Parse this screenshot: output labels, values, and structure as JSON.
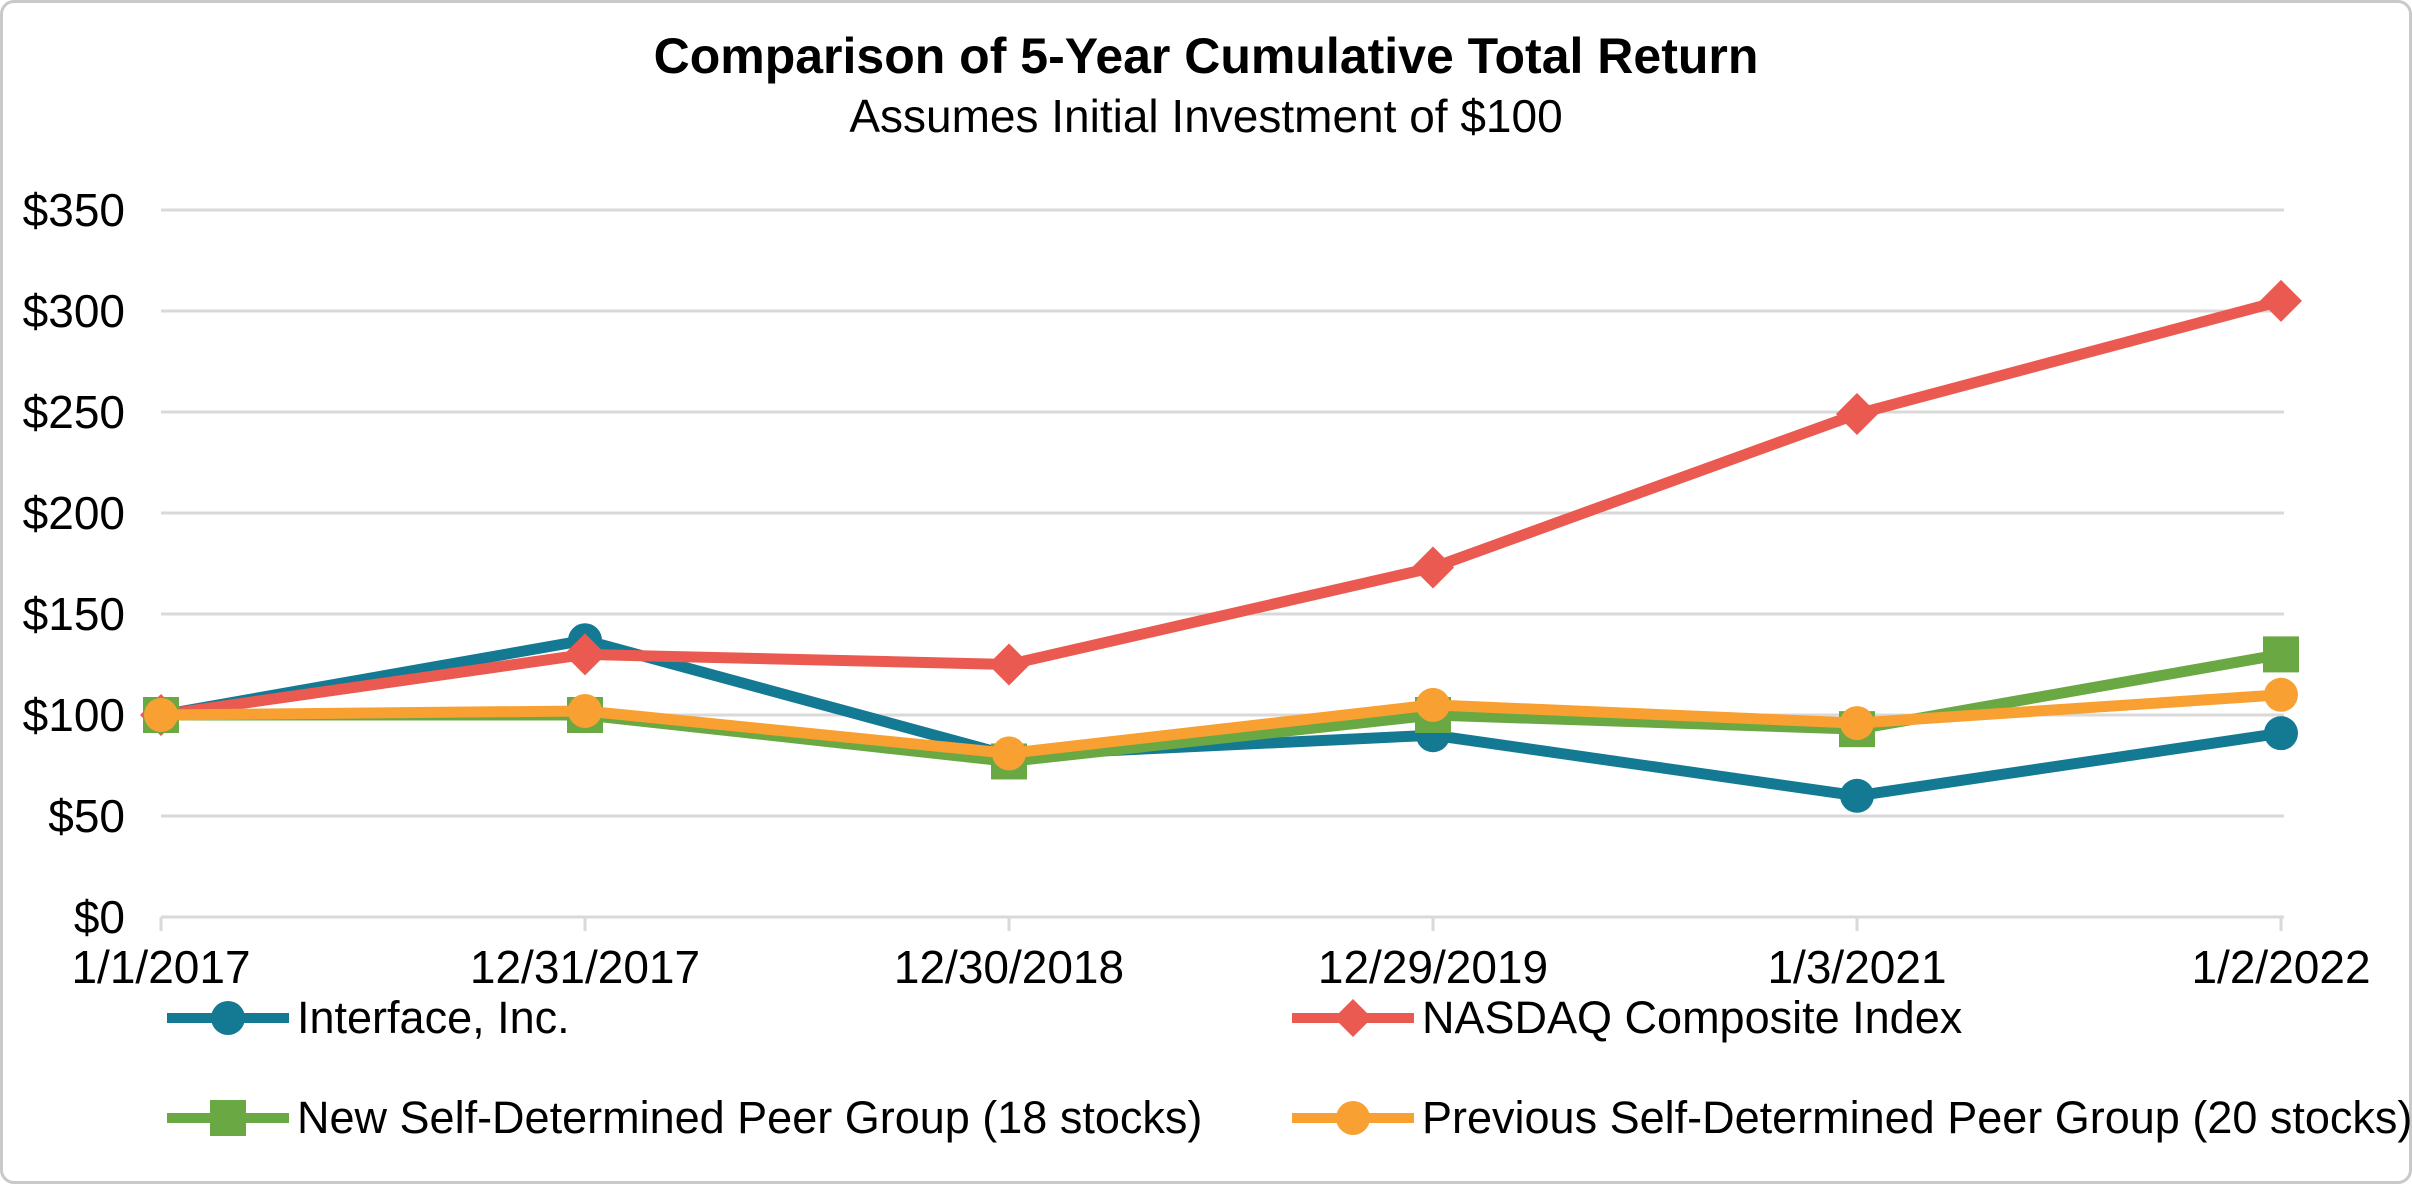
{
  "chart_data": {
    "type": "line",
    "title": "Comparison of 5-Year Cumulative Total Return",
    "subtitle": "Assumes Initial Investment of $100",
    "categories": [
      "1/1/2017",
      "12/31/2017",
      "12/30/2018",
      "12/29/2019",
      "1/3/2021",
      "1/2/2022"
    ],
    "series": [
      {
        "name": "Interface, Inc.",
        "marker": "circle",
        "color": "#147a94",
        "values": [
          100,
          137,
          80,
          90,
          60,
          91
        ]
      },
      {
        "name": "NASDAQ Composite Index",
        "marker": "diamond",
        "color": "#ea5a50",
        "values": [
          100,
          130,
          125,
          173,
          249,
          305
        ]
      },
      {
        "name": "New Self-Determined Peer Group (18 stocks)",
        "marker": "square",
        "color": "#6aa844",
        "values": [
          100,
          100,
          77,
          100,
          93,
          130
        ]
      },
      {
        "name": "Previous Self-Determined Peer Group (20 stocks)",
        "marker": "circle",
        "color": "#f8a132",
        "values": [
          100,
          102,
          81,
          105,
          96,
          110
        ]
      }
    ],
    "y_axis": {
      "min": 0,
      "max": 350,
      "step": 50,
      "tick_labels": [
        "$0",
        "$50",
        "$100",
        "$150",
        "$200",
        "$250",
        "$300",
        "$350"
      ]
    },
    "x_axis": {
      "tick_labels": [
        "1/1/2017",
        "12/31/2017",
        "12/30/2018",
        "12/29/2019",
        "1/3/2021",
        "1/2/2022"
      ]
    },
    "grid": true,
    "gridline_color": "#d9d9d9",
    "axis_text_color": "#000000",
    "legend_position": "bottom"
  }
}
